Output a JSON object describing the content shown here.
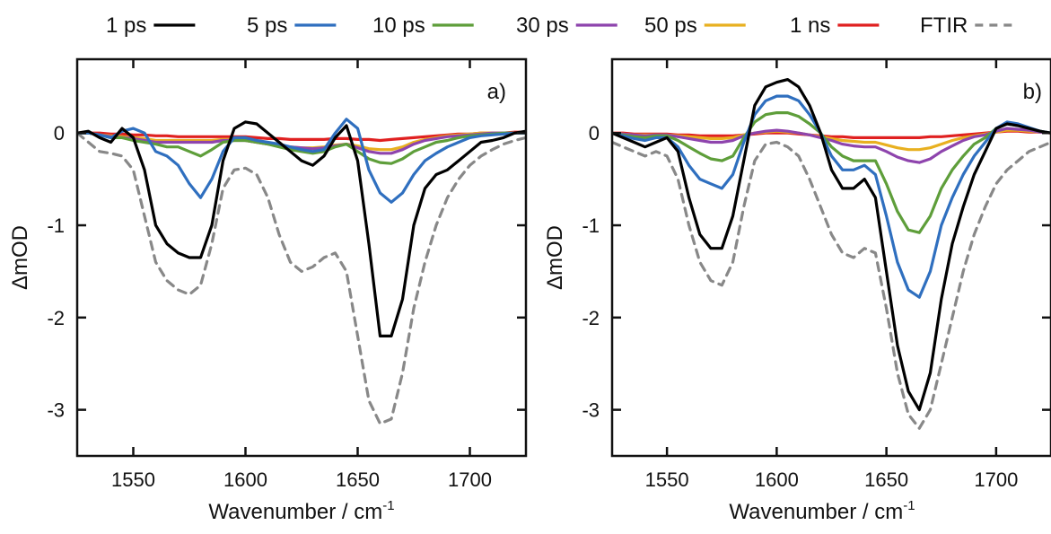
{
  "chart_data": [
    {
      "type": "line",
      "panel_label": "a)",
      "xlabel": "Wavenumber / cm",
      "xlabel_sup": "-1",
      "ylabel": "ΔmOD",
      "xlim": [
        1525,
        1725
      ],
      "ylim": [
        -3.5,
        0.8
      ],
      "xticks": [
        "1550",
        "1600",
        "1650",
        "1700"
      ],
      "yticks": [
        "0",
        "-1",
        "-2",
        "-3"
      ],
      "x": [
        1525,
        1530,
        1535,
        1540,
        1545,
        1550,
        1555,
        1560,
        1565,
        1570,
        1575,
        1580,
        1585,
        1590,
        1595,
        1600,
        1605,
        1610,
        1615,
        1620,
        1625,
        1630,
        1635,
        1640,
        1645,
        1650,
        1655,
        1660,
        1665,
        1670,
        1675,
        1680,
        1685,
        1690,
        1695,
        1700,
        1705,
        1710,
        1715,
        1720,
        1725
      ],
      "series": [
        {
          "name": "1 ps",
          "color": "#000000",
          "dash": false,
          "values": [
            0,
            0.02,
            -0.05,
            -0.1,
            0.05,
            -0.05,
            -0.4,
            -1.0,
            -1.2,
            -1.3,
            -1.35,
            -1.35,
            -1.0,
            -0.3,
            0.05,
            0.12,
            0.1,
            0.0,
            -0.1,
            -0.2,
            -0.3,
            -0.35,
            -0.25,
            -0.05,
            0.08,
            -0.3,
            -1.2,
            -2.2,
            -2.2,
            -1.8,
            -1.0,
            -0.6,
            -0.45,
            -0.4,
            -0.3,
            -0.2,
            -0.1,
            -0.08,
            -0.05,
            0,
            0.02
          ]
        },
        {
          "name": "5 ps",
          "color": "#2f6fbf",
          "dash": false,
          "values": [
            0,
            0,
            -0.02,
            -0.05,
            0.02,
            0.05,
            0.0,
            -0.2,
            -0.25,
            -0.35,
            -0.55,
            -0.7,
            -0.5,
            -0.2,
            -0.05,
            -0.05,
            -0.08,
            -0.1,
            -0.12,
            -0.15,
            -0.18,
            -0.2,
            -0.18,
            0.0,
            0.15,
            0.05,
            -0.4,
            -0.65,
            -0.75,
            -0.65,
            -0.45,
            -0.3,
            -0.22,
            -0.15,
            -0.1,
            -0.05,
            -0.03,
            -0.02,
            -0.01,
            0,
            0
          ]
        },
        {
          "name": "10 ps",
          "color": "#5e9e3a",
          "dash": false,
          "values": [
            0,
            0,
            -0.02,
            -0.05,
            -0.05,
            -0.08,
            -0.1,
            -0.12,
            -0.15,
            -0.15,
            -0.2,
            -0.25,
            -0.18,
            -0.1,
            -0.08,
            -0.08,
            -0.1,
            -0.12,
            -0.15,
            -0.18,
            -0.2,
            -0.22,
            -0.2,
            -0.15,
            -0.12,
            -0.2,
            -0.28,
            -0.32,
            -0.33,
            -0.28,
            -0.2,
            -0.15,
            -0.1,
            -0.08,
            -0.05,
            -0.03,
            -0.02,
            -0.01,
            0,
            0,
            0
          ]
        },
        {
          "name": "30 ps",
          "color": "#8e44ad",
          "dash": false,
          "values": [
            0,
            0,
            -0.02,
            -0.04,
            -0.05,
            -0.06,
            -0.08,
            -0.1,
            -0.1,
            -0.1,
            -0.1,
            -0.1,
            -0.1,
            -0.08,
            -0.08,
            -0.08,
            -0.1,
            -0.12,
            -0.14,
            -0.15,
            -0.16,
            -0.17,
            -0.16,
            -0.14,
            -0.12,
            -0.16,
            -0.2,
            -0.22,
            -0.22,
            -0.18,
            -0.12,
            -0.08,
            -0.06,
            -0.04,
            -0.03,
            -0.02,
            -0.01,
            0,
            0,
            0,
            0
          ]
        },
        {
          "name": "50 ps",
          "color": "#e8b020",
          "dash": false,
          "values": [
            0,
            0,
            -0.02,
            -0.03,
            -0.04,
            -0.05,
            -0.06,
            -0.08,
            -0.08,
            -0.08,
            -0.08,
            -0.08,
            -0.08,
            -0.07,
            -0.07,
            -0.08,
            -0.1,
            -0.12,
            -0.14,
            -0.15,
            -0.16,
            -0.16,
            -0.15,
            -0.13,
            -0.12,
            -0.14,
            -0.17,
            -0.18,
            -0.18,
            -0.15,
            -0.1,
            -0.07,
            -0.05,
            -0.03,
            -0.02,
            -0.01,
            0,
            0,
            0,
            0,
            0
          ]
        },
        {
          "name": "1 ns",
          "color": "#e02020",
          "dash": false,
          "values": [
            0,
            0,
            0,
            -0.01,
            -0.01,
            -0.02,
            -0.02,
            -0.03,
            -0.03,
            -0.04,
            -0.04,
            -0.04,
            -0.04,
            -0.04,
            -0.04,
            -0.04,
            -0.05,
            -0.06,
            -0.06,
            -0.07,
            -0.07,
            -0.07,
            -0.07,
            -0.06,
            -0.06,
            -0.07,
            -0.07,
            -0.08,
            -0.07,
            -0.06,
            -0.05,
            -0.04,
            -0.03,
            -0.02,
            -0.01,
            -0.01,
            0,
            0,
            0,
            0.01,
            0.01
          ]
        },
        {
          "name": "FTIR",
          "color": "#888888",
          "dash": true,
          "values": [
            0,
            -0.1,
            -0.2,
            -0.22,
            -0.25,
            -0.4,
            -0.9,
            -1.4,
            -1.6,
            -1.7,
            -1.75,
            -1.65,
            -1.2,
            -0.6,
            -0.4,
            -0.38,
            -0.45,
            -0.7,
            -1.1,
            -1.4,
            -1.5,
            -1.45,
            -1.35,
            -1.3,
            -1.5,
            -2.2,
            -2.9,
            -3.15,
            -3.1,
            -2.6,
            -1.9,
            -1.4,
            -1.0,
            -0.7,
            -0.5,
            -0.35,
            -0.25,
            -0.18,
            -0.12,
            -0.08,
            -0.05
          ]
        }
      ]
    },
    {
      "type": "line",
      "panel_label": "b)",
      "xlabel": "Wavenumber / cm",
      "xlabel_sup": "-1",
      "ylabel": "ΔmOD",
      "xlim": [
        1525,
        1725
      ],
      "ylim": [
        -3.5,
        0.8
      ],
      "xticks": [
        "1550",
        "1600",
        "1650",
        "1700"
      ],
      "yticks": [
        "0",
        "-1",
        "-2",
        "-3"
      ],
      "x": [
        1525,
        1530,
        1535,
        1540,
        1545,
        1550,
        1555,
        1560,
        1565,
        1570,
        1575,
        1580,
        1585,
        1590,
        1595,
        1600,
        1605,
        1610,
        1615,
        1620,
        1625,
        1630,
        1635,
        1640,
        1645,
        1650,
        1655,
        1660,
        1665,
        1670,
        1675,
        1680,
        1685,
        1690,
        1695,
        1700,
        1705,
        1710,
        1715,
        1720,
        1725
      ],
      "series": [
        {
          "name": "1 ps",
          "color": "#000000",
          "dash": false,
          "values": [
            0,
            -0.05,
            -0.1,
            -0.15,
            -0.1,
            -0.05,
            -0.2,
            -0.7,
            -1.1,
            -1.25,
            -1.25,
            -0.9,
            -0.3,
            0.3,
            0.5,
            0.55,
            0.58,
            0.5,
            0.3,
            0.0,
            -0.4,
            -0.6,
            -0.6,
            -0.5,
            -0.7,
            -1.5,
            -2.3,
            -2.8,
            -3.0,
            -2.6,
            -1.8,
            -1.2,
            -0.8,
            -0.45,
            -0.2,
            0.05,
            0.1,
            0.08,
            0.05,
            0.02,
            0
          ]
        },
        {
          "name": "5 ps",
          "color": "#2f6fbf",
          "dash": false,
          "values": [
            0,
            -0.03,
            -0.06,
            -0.08,
            -0.05,
            -0.05,
            -0.15,
            -0.35,
            -0.5,
            -0.55,
            -0.6,
            -0.45,
            -0.1,
            0.2,
            0.35,
            0.4,
            0.4,
            0.35,
            0.2,
            0.0,
            -0.25,
            -0.4,
            -0.4,
            -0.35,
            -0.45,
            -0.9,
            -1.4,
            -1.7,
            -1.78,
            -1.5,
            -1.0,
            -0.7,
            -0.45,
            -0.25,
            -0.1,
            0.05,
            0.12,
            0.1,
            0.06,
            0.02,
            0
          ]
        },
        {
          "name": "10 ps",
          "color": "#5e9e3a",
          "dash": false,
          "values": [
            0,
            -0.02,
            -0.04,
            -0.05,
            -0.03,
            -0.03,
            -0.08,
            -0.15,
            -0.22,
            -0.28,
            -0.3,
            -0.25,
            -0.05,
            0.12,
            0.2,
            0.22,
            0.22,
            0.18,
            0.1,
            0.0,
            -0.15,
            -0.25,
            -0.3,
            -0.3,
            -0.3,
            -0.55,
            -0.85,
            -1.05,
            -1.08,
            -0.9,
            -0.6,
            -0.4,
            -0.25,
            -0.12,
            -0.05,
            0.05,
            0.1,
            0.08,
            0.05,
            0.02,
            0
          ]
        },
        {
          "name": "30 ps",
          "color": "#8e44ad",
          "dash": false,
          "values": [
            0,
            -0.01,
            -0.02,
            -0.03,
            -0.02,
            -0.02,
            -0.04,
            -0.06,
            -0.08,
            -0.1,
            -0.1,
            -0.08,
            -0.03,
            0.0,
            0.02,
            0.03,
            0.02,
            0.0,
            -0.02,
            -0.05,
            -0.08,
            -0.12,
            -0.14,
            -0.15,
            -0.15,
            -0.2,
            -0.26,
            -0.3,
            -0.32,
            -0.28,
            -0.2,
            -0.14,
            -0.08,
            -0.04,
            -0.02,
            0.02,
            0.05,
            0.04,
            0.03,
            0.01,
            0
          ]
        },
        {
          "name": "50 ps",
          "color": "#e8b020",
          "dash": false,
          "values": [
            0,
            -0.01,
            -0.02,
            -0.02,
            -0.02,
            -0.02,
            -0.03,
            -0.04,
            -0.05,
            -0.06,
            -0.06,
            -0.05,
            -0.02,
            0.0,
            0.01,
            0.02,
            0.01,
            0.0,
            -0.02,
            -0.04,
            -0.06,
            -0.08,
            -0.09,
            -0.1,
            -0.1,
            -0.13,
            -0.16,
            -0.18,
            -0.18,
            -0.16,
            -0.12,
            -0.08,
            -0.05,
            -0.03,
            -0.01,
            0.01,
            0.03,
            0.03,
            0.02,
            0.01,
            0
          ]
        },
        {
          "name": "1 ns",
          "color": "#e02020",
          "dash": false,
          "values": [
            0,
            0,
            -0.01,
            -0.01,
            -0.01,
            -0.01,
            -0.02,
            -0.02,
            -0.03,
            -0.03,
            -0.03,
            -0.03,
            -0.02,
            -0.01,
            0,
            0,
            0,
            -0.01,
            -0.02,
            -0.03,
            -0.04,
            -0.04,
            -0.05,
            -0.05,
            -0.05,
            -0.05,
            -0.05,
            -0.05,
            -0.05,
            -0.04,
            -0.04,
            -0.03,
            -0.02,
            -0.01,
            0,
            0.01,
            0.02,
            0.02,
            0.01,
            0.01,
            0
          ]
        },
        {
          "name": "FTIR",
          "color": "#888888",
          "dash": true,
          "values": [
            -0.1,
            -0.15,
            -0.2,
            -0.25,
            -0.2,
            -0.25,
            -0.5,
            -1.0,
            -1.4,
            -1.6,
            -1.65,
            -1.4,
            -0.8,
            -0.3,
            -0.12,
            -0.1,
            -0.15,
            -0.25,
            -0.5,
            -0.8,
            -1.1,
            -1.3,
            -1.35,
            -1.25,
            -1.3,
            -1.9,
            -2.6,
            -3.05,
            -3.2,
            -3.0,
            -2.5,
            -2.0,
            -1.5,
            -1.1,
            -0.8,
            -0.55,
            -0.4,
            -0.3,
            -0.2,
            -0.15,
            -0.1
          ]
        }
      ]
    }
  ]
}
